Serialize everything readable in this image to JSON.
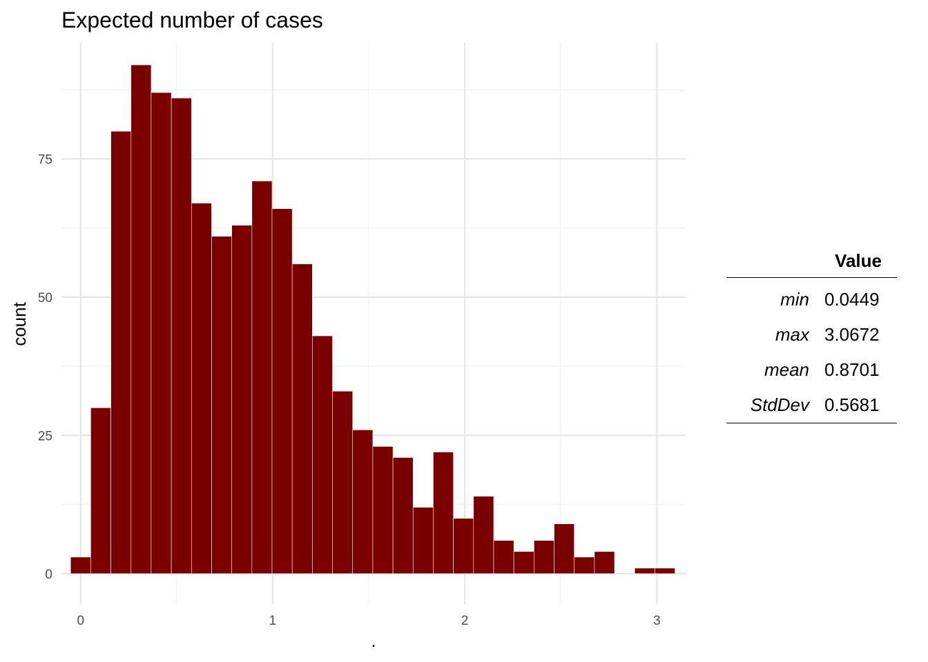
{
  "chart_data": {
    "type": "bar",
    "subtype": "histogram",
    "title": "Expected number of cases",
    "xlabel": ".",
    "ylabel": "count",
    "bin_width": 0.1049,
    "bin_centers": [
      0.0,
      0.1049,
      0.2098,
      0.3147,
      0.4196,
      0.5245,
      0.6294,
      0.7343,
      0.8392,
      0.9441,
      1.049,
      1.1539,
      1.2588,
      1.3637,
      1.4686,
      1.5735,
      1.6784,
      1.7833,
      1.8882,
      1.9931,
      2.098,
      2.2029,
      2.3078,
      2.4127,
      2.5176,
      2.6225,
      2.7274,
      2.8323,
      2.9372,
      3.0421
    ],
    "values": [
      3,
      30,
      80,
      92,
      87,
      86,
      67,
      61,
      63,
      71,
      66,
      56,
      43,
      33,
      26,
      23,
      21,
      12,
      22,
      10,
      14,
      6,
      4,
      6,
      9,
      3,
      4,
      0,
      1,
      1
    ],
    "xlim": [
      -0.1,
      3.15
    ],
    "ylim": [
      -5.5,
      96
    ],
    "x_ticks": [
      0,
      1,
      2,
      3
    ],
    "x_tick_labels": [
      "0",
      "1",
      "2",
      "3"
    ],
    "y_ticks": [
      0,
      25,
      50,
      75
    ],
    "y_tick_labels": [
      "0",
      "25",
      "50",
      "75"
    ],
    "x_minor_ticks": [
      0.5,
      1.5,
      2.5
    ],
    "y_minor_ticks": [
      12.5,
      37.5,
      62.5,
      87.5
    ],
    "grid": true,
    "bar_color": "#7a0000",
    "bar_edge_color": "#ffffff"
  },
  "stats_table": {
    "header": "Value",
    "rows": [
      {
        "name": "min",
        "value": "0.0449"
      },
      {
        "name": "max",
        "value": "3.0672"
      },
      {
        "name": "mean",
        "value": "0.8701"
      },
      {
        "name": "StdDev",
        "value": "0.5681"
      }
    ]
  },
  "colors": {
    "grid_major": "#e5e5e5",
    "grid_minor": "#f0f0f0",
    "axis_text": "#4d4d4d",
    "text": "#000000"
  }
}
